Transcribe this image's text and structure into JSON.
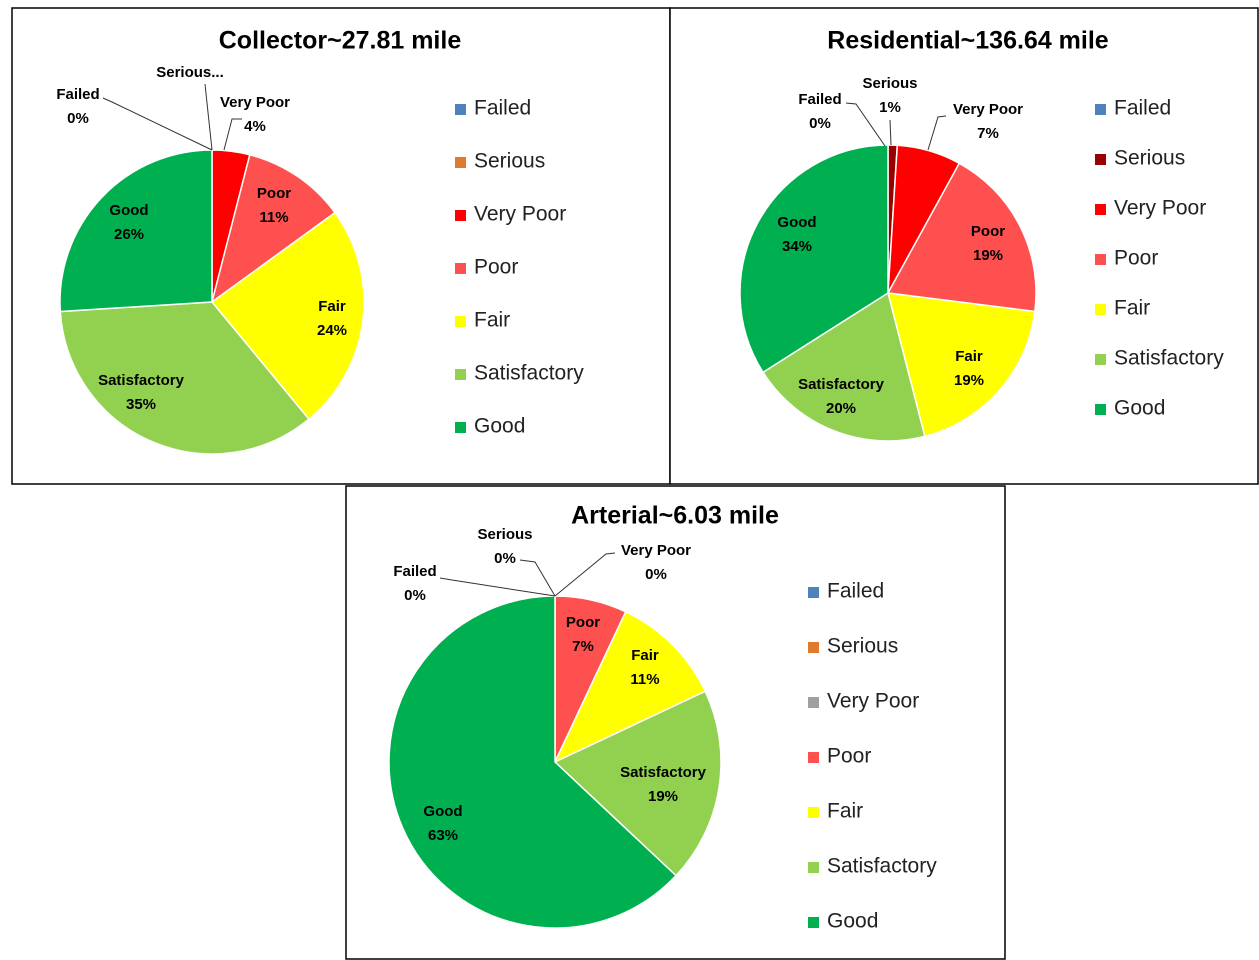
{
  "chart_data": [
    {
      "type": "pie",
      "title": "Collector~27.81 mile",
      "categories": [
        "Failed",
        "Serious",
        "Very Poor",
        "Poor",
        "Fair",
        "Satisfactory",
        "Good"
      ],
      "values": [
        0,
        0,
        4,
        11,
        24,
        35,
        26
      ],
      "value_labels": [
        "0%",
        null,
        "4%",
        "11%",
        "24%",
        "35%",
        "26%"
      ],
      "label_names": [
        "Failed",
        "Serious...",
        "Very Poor",
        "Poor",
        "Fair",
        "Satisfactory",
        "Good"
      ],
      "colors": [
        "#4f81bd",
        "#e07a2e",
        "#ff0000",
        "#ff5050",
        "#ffff00",
        "#92d050",
        "#00b050"
      ],
      "legend": "right"
    },
    {
      "type": "pie",
      "title": "Residential~136.64 mile",
      "categories": [
        "Failed",
        "Serious",
        "Very Poor",
        "Poor",
        "Fair",
        "Satisfactory",
        "Good"
      ],
      "values": [
        0,
        1,
        7,
        19,
        19,
        20,
        34
      ],
      "value_labels": [
        "0%",
        "1%",
        "7%",
        "19%",
        "19%",
        "20%",
        "34%"
      ],
      "label_names": [
        "Failed",
        "Serious",
        "Very Poor",
        "Poor",
        "Fair",
        "Satisfactory",
        "Good"
      ],
      "colors": [
        "#4f81bd",
        "#990000",
        "#ff0000",
        "#ff5050",
        "#ffff00",
        "#92d050",
        "#00b050"
      ],
      "legend": "right"
    },
    {
      "type": "pie",
      "title": "Arterial~6.03 mile",
      "categories": [
        "Failed",
        "Serious",
        "Very Poor",
        "Poor",
        "Fair",
        "Satisfactory",
        "Good"
      ],
      "values": [
        0,
        0,
        0,
        7,
        11,
        19,
        63
      ],
      "value_labels": [
        "0%",
        "0%",
        "0%",
        "7%",
        "11%",
        "19%",
        "63%"
      ],
      "label_names": [
        "Failed",
        "Serious",
        "Very Poor",
        "Poor",
        "Fair",
        "Satisfactory",
        "Good"
      ],
      "colors": [
        "#4f81bd",
        "#e07a2e",
        "#a0a0a0",
        "#ff5050",
        "#ffff00",
        "#92d050",
        "#00b050"
      ],
      "legend": "right"
    }
  ]
}
